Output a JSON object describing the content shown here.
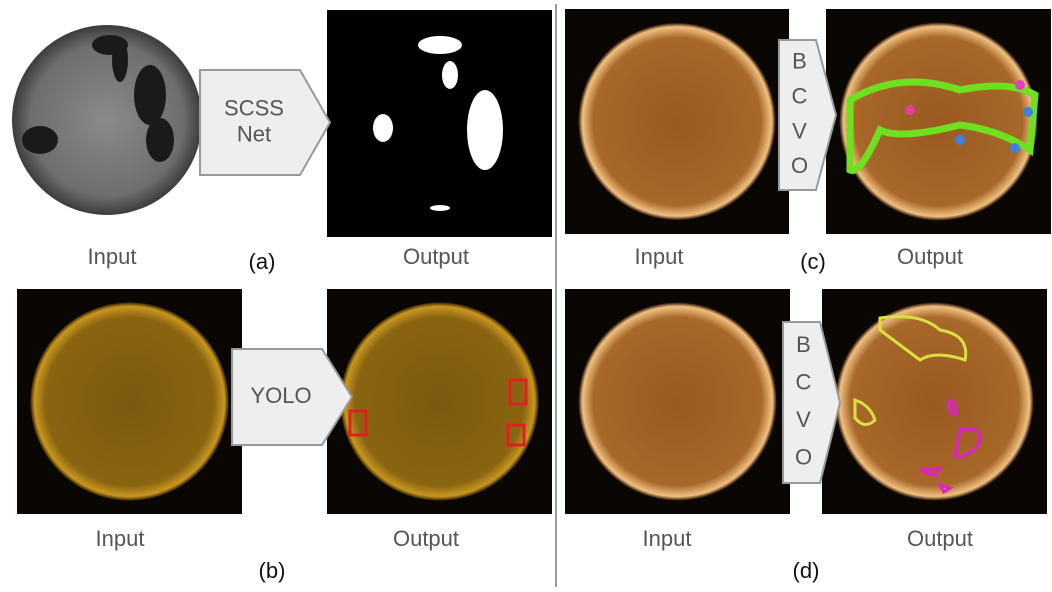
{
  "panels": [
    {
      "tag": "(a)",
      "input": "Input",
      "output": "Output",
      "model": [
        "SCSS",
        "Net"
      ]
    },
    {
      "tag": "(b)",
      "input": "Input",
      "output": "Output",
      "model": [
        "YOLO"
      ]
    },
    {
      "tag": "(c)",
      "input": "Input",
      "output": "Output",
      "model": [
        "B",
        "C",
        "V",
        "O"
      ]
    },
    {
      "tag": "(d)",
      "input": "Input",
      "output": "Output",
      "model": [
        "B",
        "C",
        "V",
        "O"
      ]
    }
  ]
}
